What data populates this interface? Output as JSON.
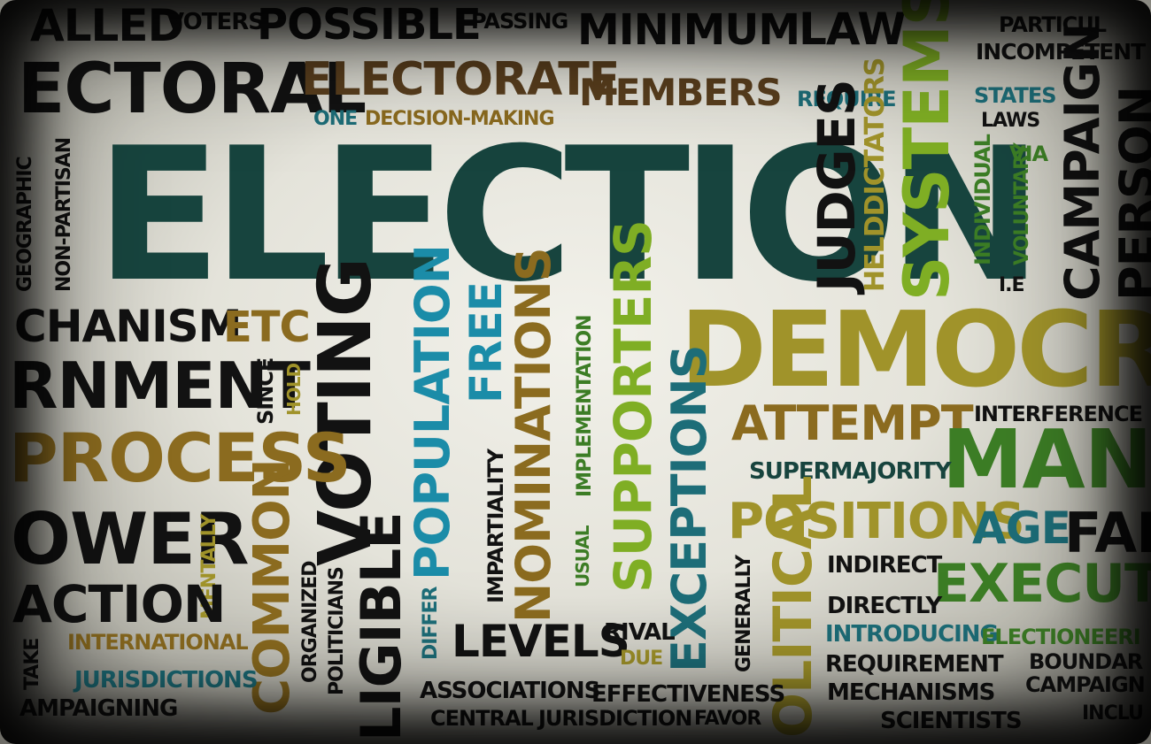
{
  "words": {
    "called": "ALLED",
    "voters": "VOTERS",
    "possible": "POSSIBLE",
    "passing": "PASSING",
    "minimum": "MINIMUM",
    "law": "LAW",
    "particular": "PARTICUL",
    "incompetent": "INCOMPETENT",
    "electoral": "ECTORAL",
    "electorate": "ELECTORATE",
    "members": "MEMBERS",
    "require": "REQUIRE",
    "states": "STATES",
    "laws": "LAWS",
    "one": "ONE",
    "decision_making": "DECISION-MAKING",
    "election": "ELECTION",
    "systems": "SYSTEMS",
    "campaign_v": "CAMPAIGN",
    "person": "PERSON",
    "judges": "JUDGES",
    "helddictators": "HELDDICTATORS",
    "individual": "INDIVIDUAL",
    "voluntary": "VOLUNTARY",
    "via": "VIA",
    "ie": "I.E",
    "geographic": "GEOGRAPHIC",
    "non_partisan": "NON-PARTISAN",
    "mechanism": "CHANISM",
    "etc": "ETC",
    "voting": "VOTING",
    "population": "POPULATION",
    "free": "FREE",
    "implementation": "IMPLEMENTATION",
    "supporters": "SUPPORTERS",
    "democracy": "DEMOCRAC",
    "government": "RNMENT",
    "since": "SINCE",
    "hold": "HOLD",
    "nominations": "NOMINATIONS",
    "interference": "INTERFERENCE",
    "attempt": "ATTEMPT",
    "many": "MANY",
    "process": "PROCESS",
    "exceptions": "EXCEPTIONS",
    "supermajority": "SUPERMAJORITY",
    "impartiality": "IMPARTIALITY",
    "usual": "USUAL",
    "positions": "POSITIONS",
    "age": "AGE",
    "fair": "FAI",
    "power": "OWER",
    "mentally": "MENTALLY",
    "common": "COMMON",
    "eligible": "LIGIBLE",
    "generally": "GENERALLY",
    "indirect": "INDIRECT",
    "executive": "EXECUTIV",
    "action": "ACTION",
    "organized": "ORGANIZED",
    "politicians": "POLITICIANS",
    "differ": "DIFFER",
    "political": "OLITICAL",
    "directly": "DIRECTLY",
    "international": "INTERNATIONAL",
    "levels": "LEVELS",
    "rival": "RIVAL",
    "due": "DUE",
    "introducing": "INTRODUCING",
    "electioneering": "ELECTIONEERI",
    "take": "TAKE",
    "jurisdictions": "JURISDICTIONS",
    "requirement": "REQUIREMENT",
    "boundary": "BOUNDAR",
    "campaigning": "AMPAIGNING",
    "associations": "ASSOCIATIONS",
    "effectiveness": "EFFECTIVENESS",
    "mechanisms": "MECHANISMS",
    "campaign_h": "CAMPAIGN",
    "central": "CENTRAL",
    "jurisdiction": "JURISDICTION",
    "favor": "FAVOR",
    "scientists": "SCIENTISTS",
    "include": "INCLU"
  },
  "colors": {
    "black": "#121212",
    "dark_teal": "#17443e",
    "teal": "#1d6d78",
    "cyan": "#1b8ca8",
    "green": "#3c7d25",
    "light_green": "#7fae24",
    "olive": "#a0932a",
    "brown": "#5a3f1e",
    "gold": "#8b6b1f",
    "paper": "#e8e7de"
  }
}
